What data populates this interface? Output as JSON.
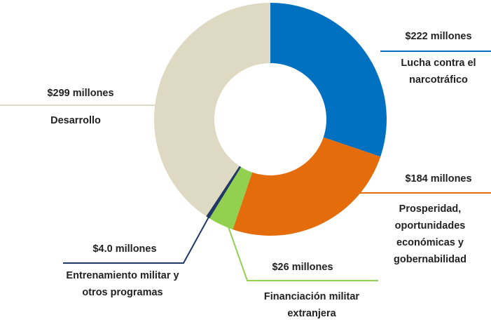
{
  "chart_data": {
    "type": "pie",
    "categories": [
      "Lucha contra el narcotráfico",
      "Prosperidad, oportunidades económicas y gobernabilidad",
      "Financiación militar extranjera",
      "Entrenamiento militar y otros programas",
      "Desarrollo"
    ],
    "values": [
      222,
      184,
      26,
      4.0,
      299
    ],
    "value_labels": [
      "$222 millones",
      "$184 millones",
      "$26 millones",
      "$4.0 millones",
      "$299 millones"
    ],
    "colors": [
      "#0070c0",
      "#e46c0a",
      "#92d050",
      "#1f3864",
      "#ddd9c3"
    ]
  }
}
